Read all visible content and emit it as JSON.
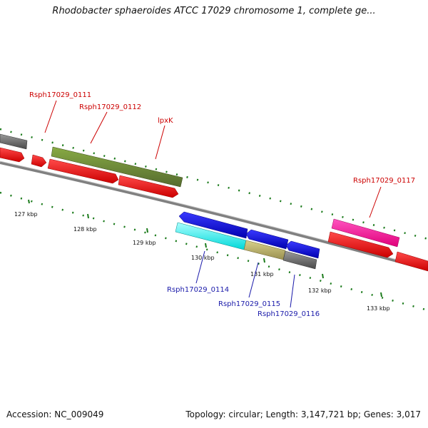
{
  "title": "Rhodobacter sphaeroides ATCC 17029 chromosome 1, complete ge...",
  "footer": {
    "accession": "Accession: NC_009049",
    "topology": "Topology: circular; Length: 3,147,721 bp; Genes: 3,017"
  },
  "ticks": [
    "127 kbp",
    "128 kbp",
    "129 kbp",
    "130 kbp",
    "131 kbp",
    "132 kbp",
    "133 kbp"
  ],
  "gene_labels": {
    "g0111": "Rsph17029_0111",
    "g0112": "Rsph17029_0112",
    "lpxK": "lpxK",
    "g0117": "Rsph17029_0117",
    "g0114": "Rsph17029_0114",
    "g0115": "Rsph17029_0115",
    "g0116": "Rsph17029_0116"
  },
  "colors": {
    "cds_red": "#ff0000",
    "gene_grey": "#666666",
    "gene_olive": "#6b8e23",
    "gene_blue": "#0000ee",
    "gene_cyan": "#00ffff",
    "gene_khaki": "#bdb76b",
    "gene_pink": "#ff1493",
    "tick_green": "#107010",
    "backbone": "#888888"
  }
}
